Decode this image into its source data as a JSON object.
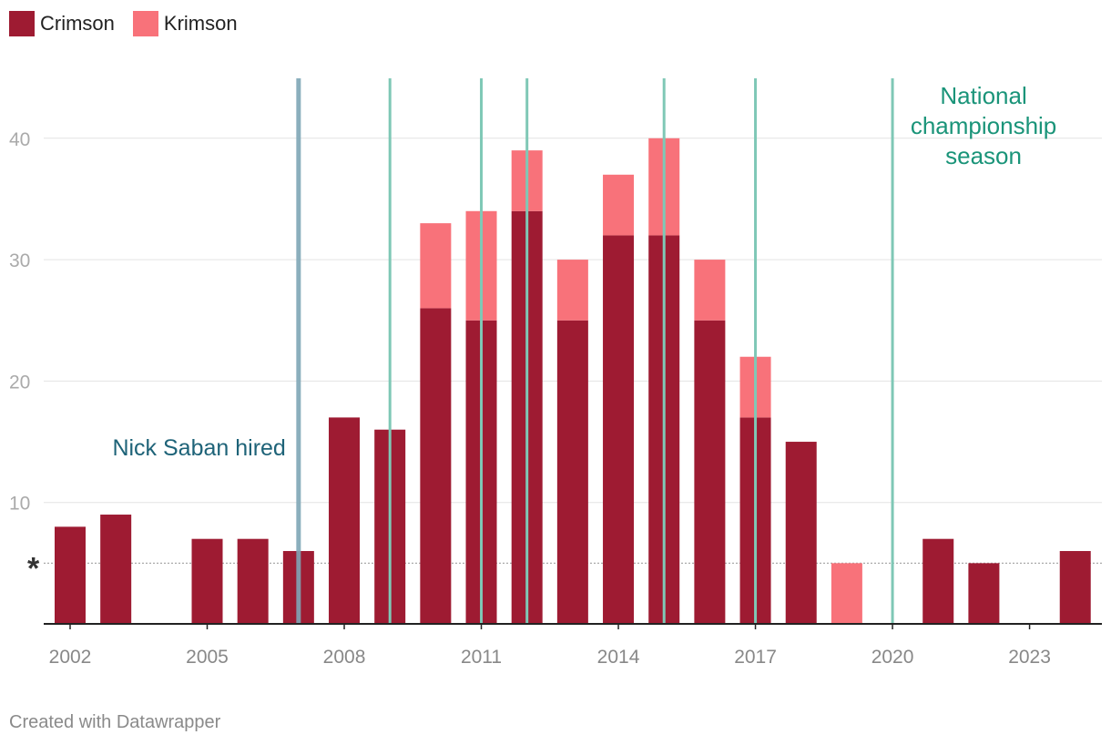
{
  "legend": {
    "items": [
      {
        "label": "Crimson",
        "color": "#9e1b32"
      },
      {
        "label": "Krimson",
        "color": "#f8727a"
      }
    ]
  },
  "footer": {
    "credit": "Created with Datawrapper"
  },
  "chart_data": {
    "type": "bar",
    "stacked": true,
    "title": "",
    "xlabel": "",
    "ylabel": "",
    "ylim": [
      0,
      45
    ],
    "y_ticks": [
      10,
      20,
      30,
      40
    ],
    "x_ticks": [
      "2002",
      "2005",
      "2008",
      "2011",
      "2014",
      "2017",
      "2020",
      "2023"
    ],
    "categories": [
      "2002",
      "2003",
      "2004",
      "2005",
      "2006",
      "2007",
      "2008",
      "2009",
      "2010",
      "2011",
      "2012",
      "2013",
      "2014",
      "2015",
      "2016",
      "2017",
      "2018",
      "2019",
      "2020",
      "2021",
      "2022",
      "2023",
      "2024"
    ],
    "series": [
      {
        "name": "Crimson",
        "color": "#9e1b32",
        "values": [
          8,
          9,
          0,
          7,
          7,
          6,
          17,
          16,
          26,
          25,
          34,
          25,
          32,
          32,
          25,
          17,
          15,
          0,
          0,
          7,
          5,
          0,
          6
        ]
      },
      {
        "name": "Krimson",
        "color": "#f8727a",
        "values": [
          0,
          0,
          0,
          0,
          0,
          0,
          0,
          0,
          7,
          9,
          5,
          5,
          5,
          8,
          5,
          5,
          0,
          5,
          0,
          0,
          0,
          0,
          0
        ]
      }
    ],
    "reference_line": {
      "value": 5,
      "label": "*",
      "style": "dotted"
    },
    "annotations": [
      {
        "text": "Nick Saban hired",
        "year": 2007,
        "color": "#1e6378",
        "line_color": "#7ea6b6"
      },
      {
        "text": "National championship season",
        "lines": [
          "National",
          "championship",
          "season"
        ],
        "color": "#1a9479",
        "line_color": "#7fc8b6",
        "years": [
          2009,
          2011,
          2012,
          2015,
          2017,
          2020
        ]
      }
    ]
  }
}
